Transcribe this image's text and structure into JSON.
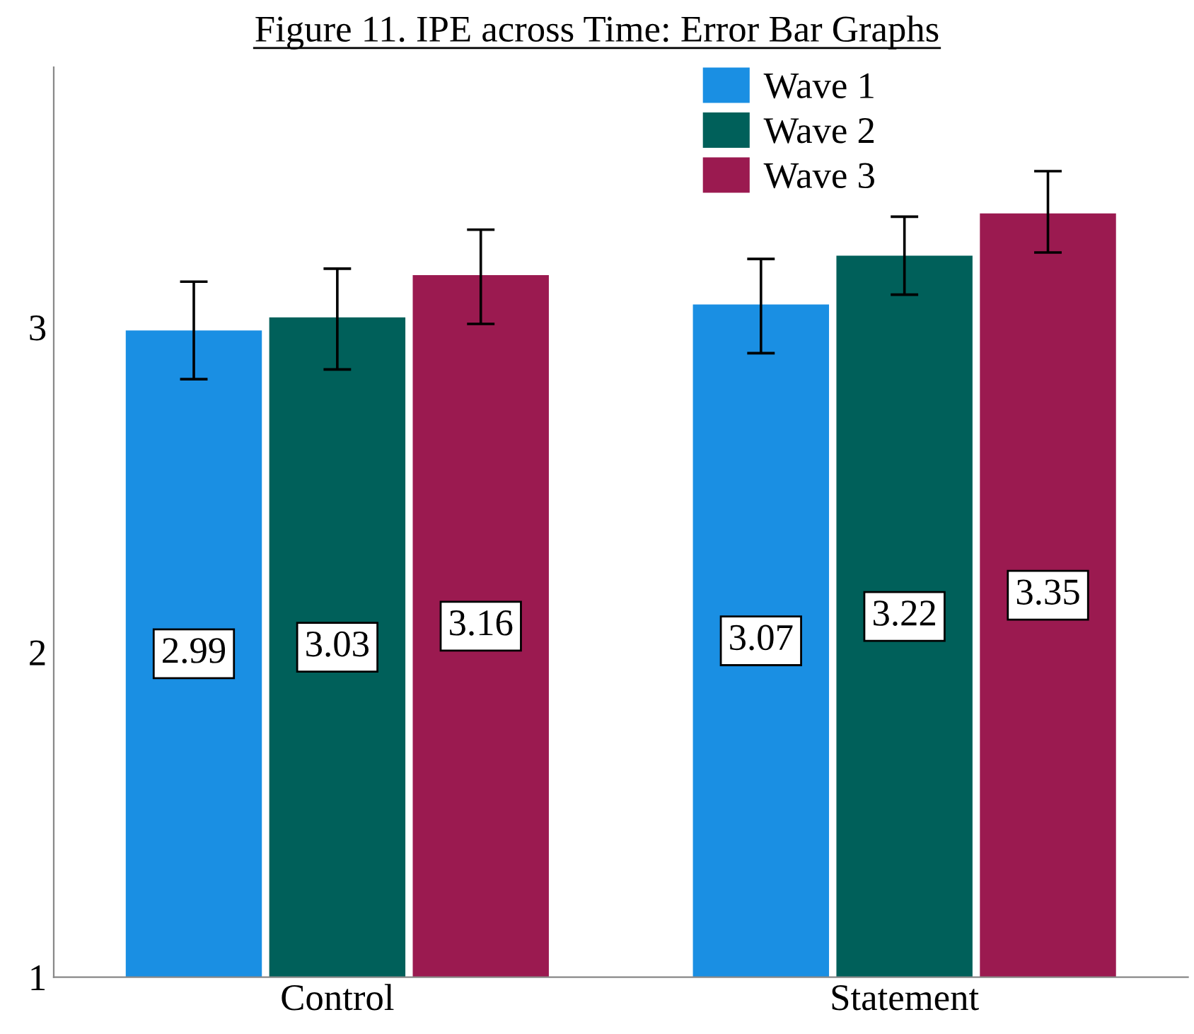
{
  "chart_data": {
    "type": "bar",
    "title": "Figure 11. IPE across Time: Error Bar Graphs",
    "categories": [
      "Control",
      "Statement"
    ],
    "series": [
      {
        "name": "Wave 1",
        "color": "#1a8fe3",
        "values": [
          2.99,
          3.07
        ],
        "errors": [
          [
            2.84,
            3.14
          ],
          [
            2.92,
            3.21
          ]
        ]
      },
      {
        "name": "Wave 2",
        "color": "#00605a",
        "values": [
          3.03,
          3.22
        ],
        "errors": [
          [
            2.87,
            3.18
          ],
          [
            3.1,
            3.34
          ]
        ]
      },
      {
        "name": "Wave 3",
        "color": "#9b1a50",
        "values": [
          3.16,
          3.35
        ],
        "errors": [
          [
            3.01,
            3.3
          ],
          [
            3.23,
            3.48
          ]
        ]
      }
    ],
    "ylim": [
      1,
      3.8
    ],
    "yticks": [
      1,
      2,
      3
    ],
    "grid": false,
    "legend": "top right",
    "data_labels": true
  }
}
